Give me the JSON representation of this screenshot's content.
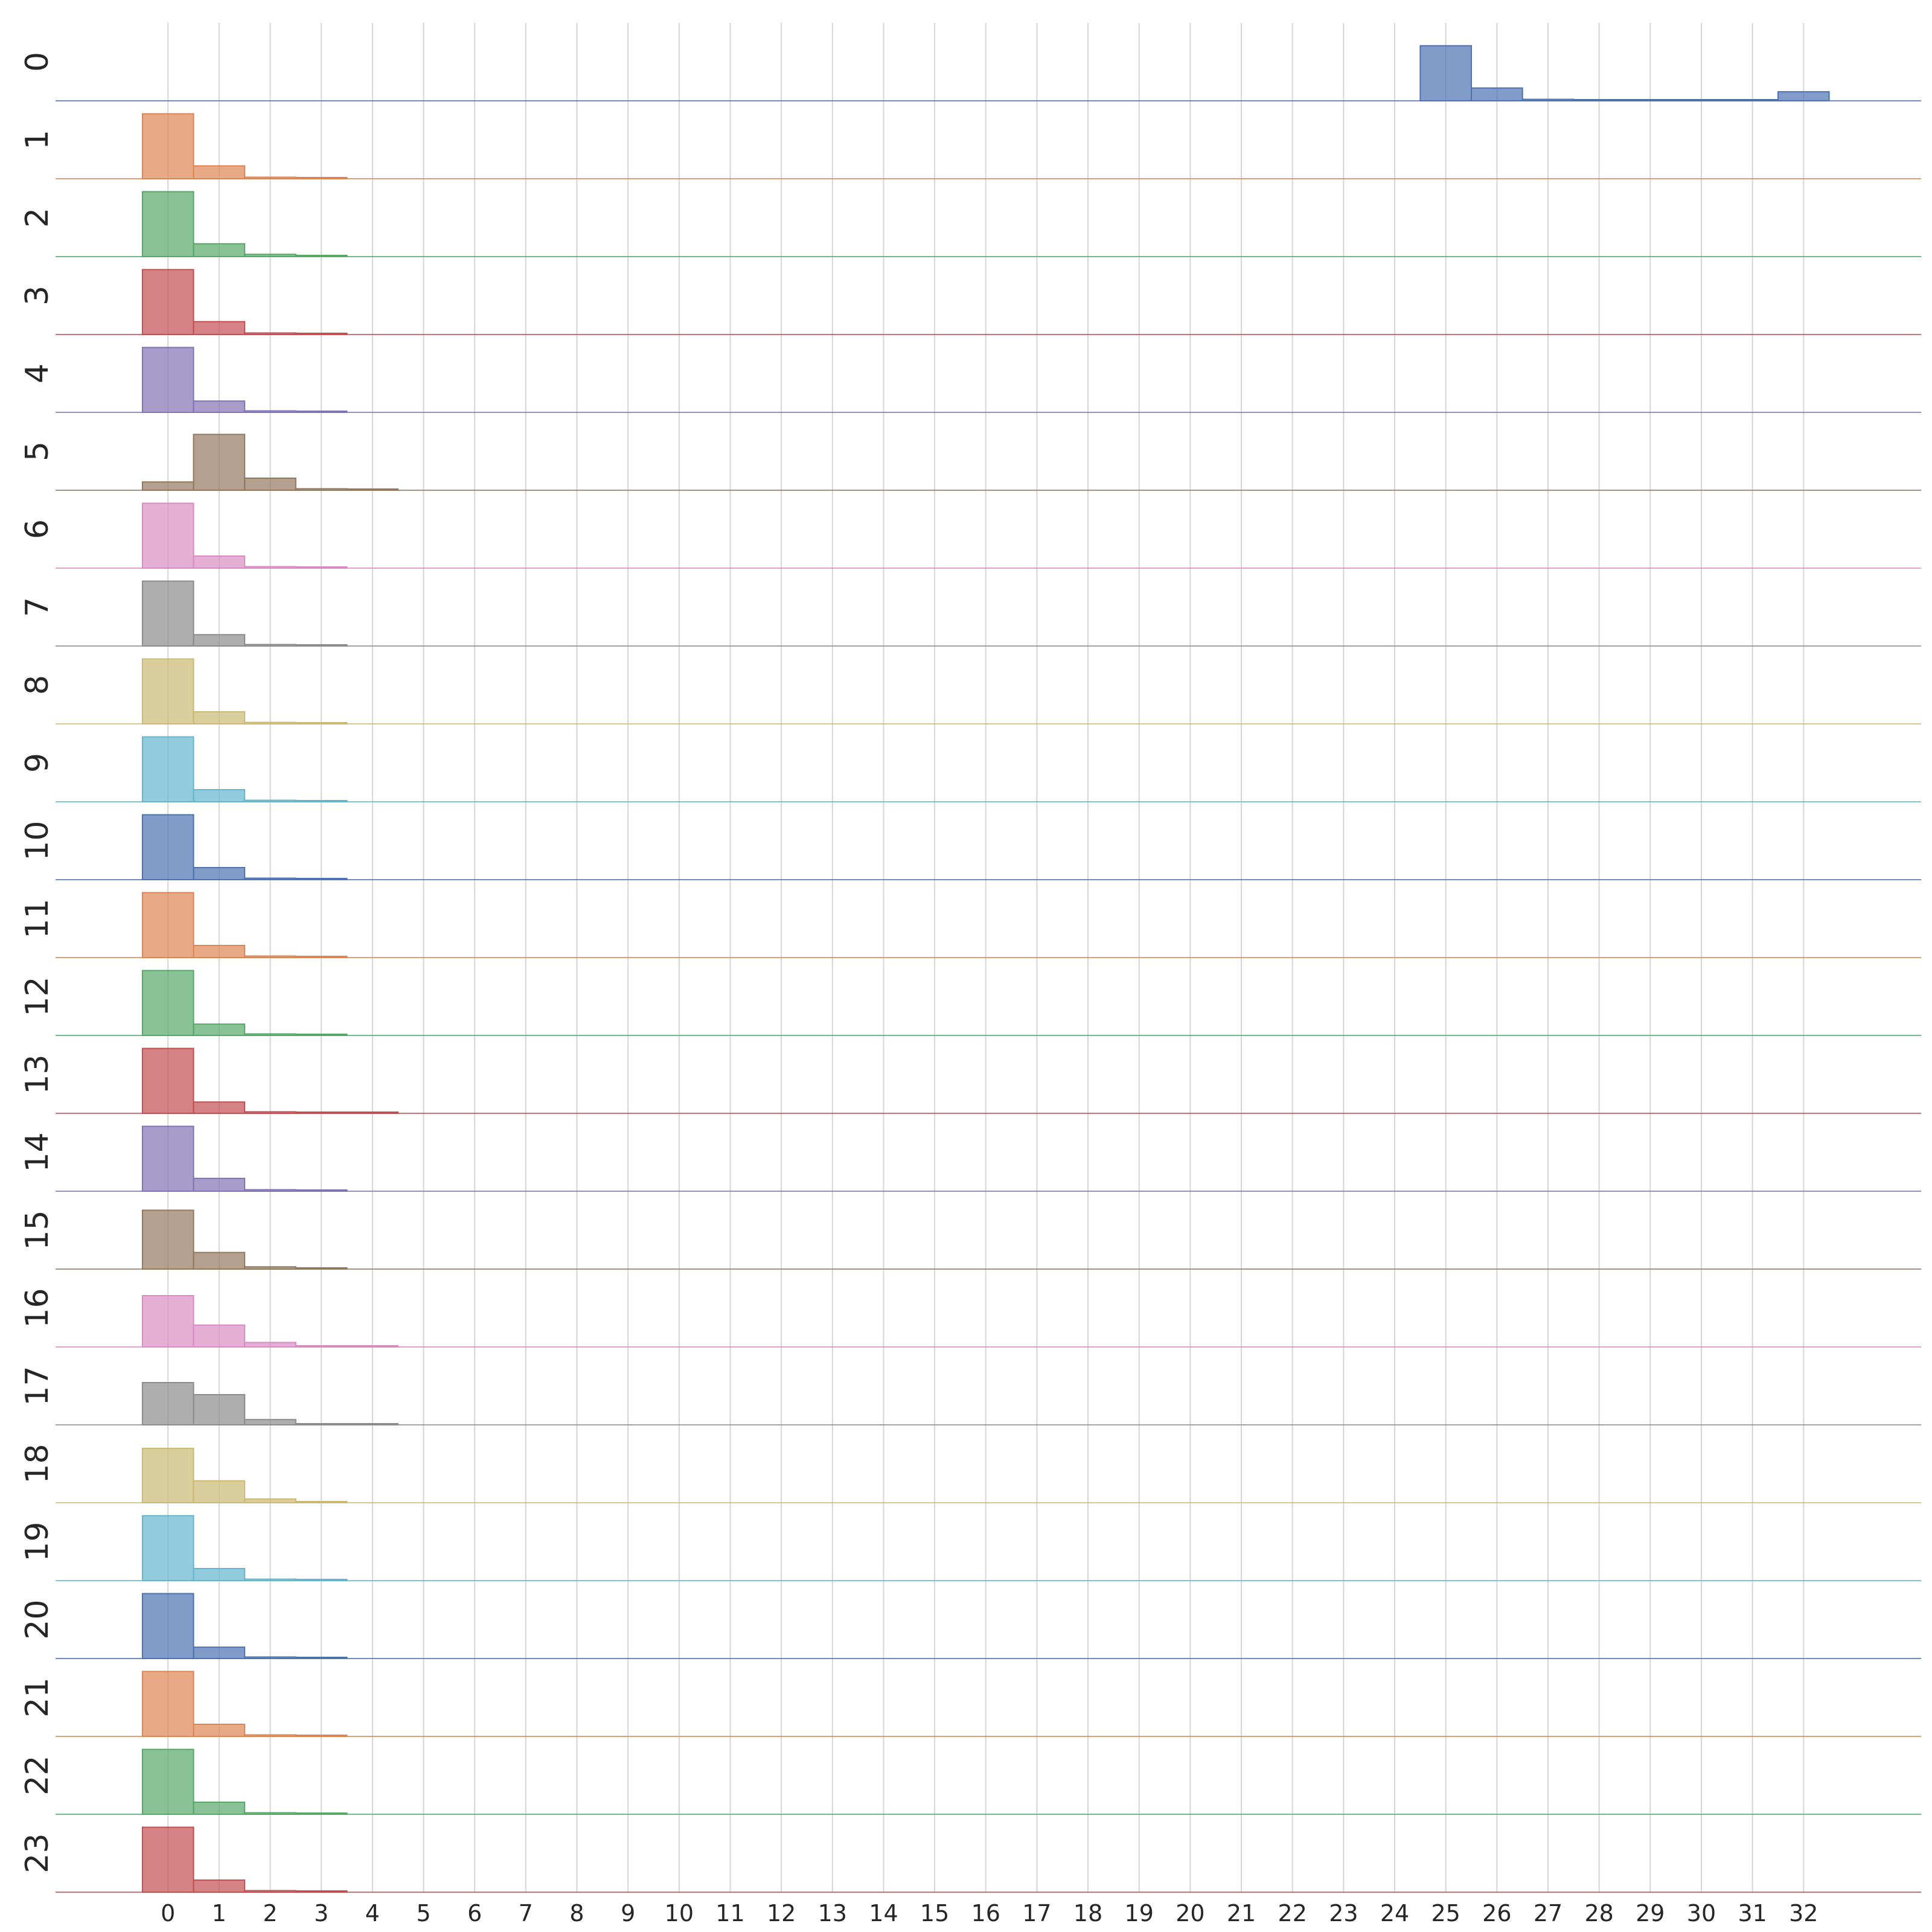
{
  "chart_data": {
    "type": "histogram-ridgeline",
    "title": "",
    "xlabel": "",
    "ylabel": "",
    "grid": true,
    "legend": "none",
    "x_ticks": [
      "0",
      "1",
      "2",
      "3",
      "4",
      "5",
      "6",
      "7",
      "8",
      "9",
      "10",
      "11",
      "12",
      "13",
      "14",
      "15",
      "16",
      "17",
      "18",
      "19",
      "20",
      "21",
      "22",
      "23",
      "24",
      "25",
      "26",
      "27",
      "28",
      "29",
      "30",
      "31",
      "32"
    ],
    "xlim": [
      -2.2,
      34.3
    ],
    "bin_width": 1,
    "value_unit": "relative frequency",
    "palette": [
      "#4c72b0",
      "#dd8452",
      "#55a868",
      "#c44e52",
      "#8172b3",
      "#937860",
      "#da8bc3",
      "#8c8c8c",
      "#ccb974",
      "#64b5cd"
    ],
    "series": [
      {
        "name": "0",
        "bin_start": 24.5,
        "values": [
          0.73,
          0.17,
          0.02,
          0.01,
          0.01,
          0.01,
          0.01,
          0.12
        ]
      },
      {
        "name": "1",
        "bin_start": -0.5,
        "values": [
          0.86,
          0.17,
          0.02,
          0.01
        ]
      },
      {
        "name": "2",
        "bin_start": -0.5,
        "values": [
          0.86,
          0.17,
          0.03,
          0.01
        ]
      },
      {
        "name": "3",
        "bin_start": -0.5,
        "values": [
          0.86,
          0.17,
          0.02,
          0.01
        ]
      },
      {
        "name": "4",
        "bin_start": -0.5,
        "values": [
          0.86,
          0.15,
          0.02,
          0.01
        ]
      },
      {
        "name": "5",
        "bin_start": -0.5,
        "values": [
          0.11,
          0.74,
          0.16,
          0.02,
          0.01
        ]
      },
      {
        "name": "6",
        "bin_start": -0.5,
        "values": [
          0.86,
          0.16,
          0.02,
          0.01
        ]
      },
      {
        "name": "7",
        "bin_start": -0.5,
        "values": [
          0.86,
          0.15,
          0.02,
          0.01
        ]
      },
      {
        "name": "8",
        "bin_start": -0.5,
        "values": [
          0.86,
          0.16,
          0.02,
          0.01
        ]
      },
      {
        "name": "9",
        "bin_start": -0.5,
        "values": [
          0.86,
          0.16,
          0.02,
          0.01
        ]
      },
      {
        "name": "10",
        "bin_start": -0.5,
        "values": [
          0.86,
          0.16,
          0.02,
          0.01
        ]
      },
      {
        "name": "11",
        "bin_start": -0.5,
        "values": [
          0.86,
          0.16,
          0.02,
          0.01
        ]
      },
      {
        "name": "12",
        "bin_start": -0.5,
        "values": [
          0.86,
          0.15,
          0.02,
          0.01
        ]
      },
      {
        "name": "13",
        "bin_start": -0.5,
        "values": [
          0.86,
          0.15,
          0.02,
          0.01,
          0.01
        ]
      },
      {
        "name": "14",
        "bin_start": -0.5,
        "values": [
          0.86,
          0.17,
          0.02,
          0.01
        ]
      },
      {
        "name": "15",
        "bin_start": -0.5,
        "values": [
          0.78,
          0.22,
          0.03,
          0.01
        ]
      },
      {
        "name": "16",
        "bin_start": -0.5,
        "values": [
          0.68,
          0.29,
          0.06,
          0.01,
          0.01
        ]
      },
      {
        "name": "17",
        "bin_start": -0.5,
        "values": [
          0.56,
          0.4,
          0.07,
          0.01,
          0.01
        ]
      },
      {
        "name": "18",
        "bin_start": -0.5,
        "values": [
          0.72,
          0.29,
          0.05,
          0.01
        ]
      },
      {
        "name": "19",
        "bin_start": -0.5,
        "values": [
          0.86,
          0.16,
          0.02,
          0.01
        ]
      },
      {
        "name": "20",
        "bin_start": -0.5,
        "values": [
          0.86,
          0.15,
          0.02,
          0.01
        ]
      },
      {
        "name": "21",
        "bin_start": -0.5,
        "values": [
          0.86,
          0.16,
          0.02,
          0.01
        ]
      },
      {
        "name": "22",
        "bin_start": -0.5,
        "values": [
          0.86,
          0.16,
          0.02,
          0.01
        ]
      },
      {
        "name": "23",
        "bin_start": -0.5,
        "values": [
          0.86,
          0.16,
          0.02,
          0.01
        ]
      }
    ]
  }
}
